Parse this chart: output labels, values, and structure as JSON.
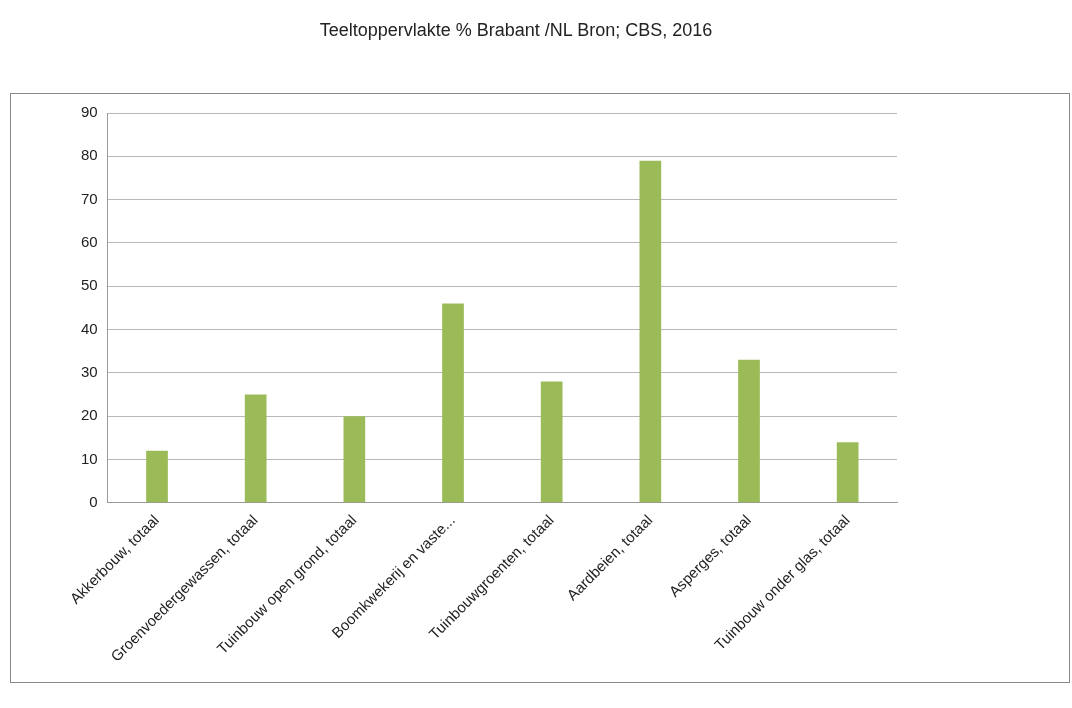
{
  "chart_data": {
    "type": "bar",
    "title": "Teeltoppervlakte % Brabant /NL  Bron; CBS, 2016",
    "categories": [
      "Akkerbouw, totaal",
      "Groenvoedergewassen, totaal",
      "Tuinbouw open grond, totaal",
      "Boomkwekerij en vaste...",
      "Tuinbouwgroenten, totaal",
      "Aardbeien, totaal",
      "Asperges, totaal",
      "Tuinbouw onder glas, totaal"
    ],
    "values": [
      12,
      25,
      20,
      46,
      28,
      79,
      33,
      14
    ],
    "color": "#9bbb59",
    "ylim": [
      0,
      90
    ],
    "yticks": [
      0,
      10,
      20,
      30,
      40,
      50,
      60,
      70,
      80,
      90
    ],
    "grid": "y",
    "legend": false
  }
}
